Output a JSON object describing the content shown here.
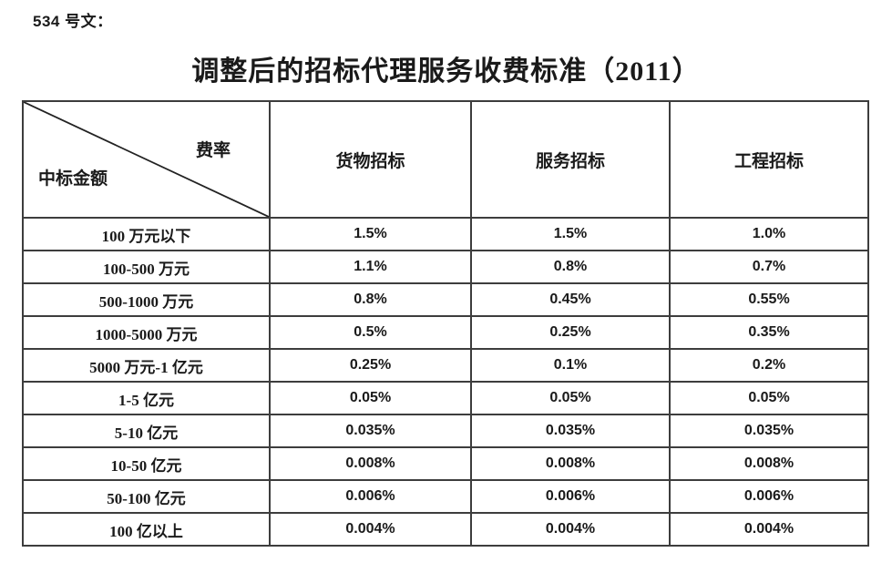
{
  "doc_label": "534 号文：",
  "title": "调整后的招标代理服务收费标准（2011）",
  "table": {
    "corner": {
      "top_right": "费率",
      "bottom_left": "中标金额"
    },
    "columns": [
      "货物招标",
      "服务招标",
      "工程招标"
    ],
    "rows": [
      {
        "label": "100 万元以下",
        "values": [
          "1.5%",
          "1.5%",
          "1.0%"
        ]
      },
      {
        "label": "100-500 万元",
        "values": [
          "1.1%",
          "0.8%",
          "0.7%"
        ]
      },
      {
        "label": "500-1000 万元",
        "values": [
          "0.8%",
          "0.45%",
          "0.55%"
        ]
      },
      {
        "label": "1000-5000 万元",
        "values": [
          "0.5%",
          "0.25%",
          "0.35%"
        ]
      },
      {
        "label": "5000 万元-1 亿元",
        "values": [
          "0.25%",
          "0.1%",
          "0.2%"
        ]
      },
      {
        "label": "1-5 亿元",
        "values": [
          "0.05%",
          "0.05%",
          "0.05%"
        ]
      },
      {
        "label": "5-10 亿元",
        "values": [
          "0.035%",
          "0.035%",
          "0.035%"
        ]
      },
      {
        "label": "10-50 亿元",
        "values": [
          "0.008%",
          "0.008%",
          "0.008%"
        ]
      },
      {
        "label": "50-100 亿元",
        "values": [
          "0.006%",
          "0.006%",
          "0.006%"
        ]
      },
      {
        "label": "100 亿以上",
        "values": [
          "0.004%",
          "0.004%",
          "0.004%"
        ]
      }
    ]
  },
  "colors": {
    "background": "#ffffff",
    "text": "#1a1a1a",
    "border": "#3d3d3d"
  }
}
